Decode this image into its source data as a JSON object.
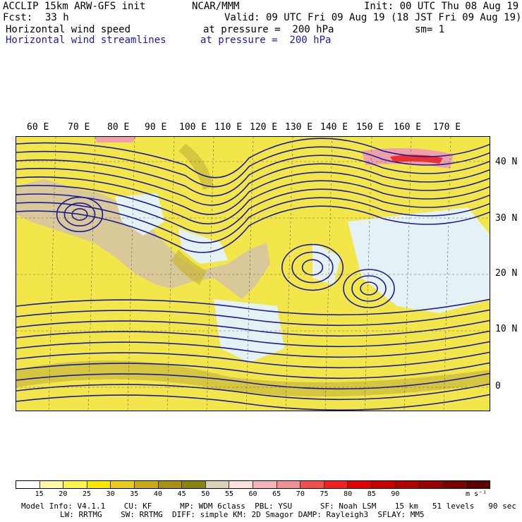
{
  "header": {
    "model": "ACCLIP 15km ARW-GFS init",
    "org": "NCAR/MMM",
    "init": "Init: 00 UTC Thu 08 Aug 19",
    "fcst_label": "Fcst:",
    "fcst_value": "33 h",
    "valid": "Valid: 09 UTC Fri 09 Aug 19 (18 JST Fri 09 Aug 19)",
    "field1": "Horizontal wind speed",
    "field1_level": "at pressure =  200 hPa",
    "sm": "sm= 1",
    "field2": "Horizontal wind streamlines",
    "field2_level": "at pressure =  200 hPa"
  },
  "map": {
    "lon_labels": [
      "60 E",
      "70 E",
      "80 E",
      "90 E",
      "100 E",
      "110 E",
      "120 E",
      "130 E",
      "140 E",
      "150 E",
      "160 E",
      "170 E"
    ],
    "lat_labels": [
      "40 N",
      "30 N",
      "20 N",
      "10 N",
      "0"
    ],
    "colors": {
      "background": "#f2e64a",
      "land": "#d9c89a",
      "calm": "#e4f1f5",
      "strong": "#c9b63a",
      "jet_core": "#ee3030",
      "jet_edge": "#f0a0a8",
      "streamline": "#1a1a9a",
      "coastline": "#6f6250"
    }
  },
  "legend": {
    "colors": [
      "#ffffff",
      "#fff9a8",
      "#fff350",
      "#fbe800",
      "#e8cc20",
      "#c8aa1a",
      "#a89014",
      "#8c8410",
      "#d8d4b8",
      "#fde0e0",
      "#f6b4b8",
      "#f09094",
      "#f05050",
      "#f02020",
      "#e00000",
      "#c80000",
      "#b00000",
      "#980000",
      "#7a0000",
      "#5a0000"
    ],
    "ticks": [
      "15",
      "20",
      "25",
      "30",
      "35",
      "40",
      "45",
      "50",
      "55",
      "60",
      "65",
      "70",
      "75",
      "80",
      "85",
      "90"
    ],
    "unit": "m s⁻¹"
  },
  "footer": {
    "line1": "Model Info: V4.1.1    CU: KF      MP: WDM 6class  PBL: YSU      SF: Noah LSM    15 km   51 levels   90 sec",
    "line2": "LW: RRTMG    SW: RRTMG  DIFF: simple KM: 2D Smagor DAMP: Rayleigh3  SFLAY: MM5"
  }
}
